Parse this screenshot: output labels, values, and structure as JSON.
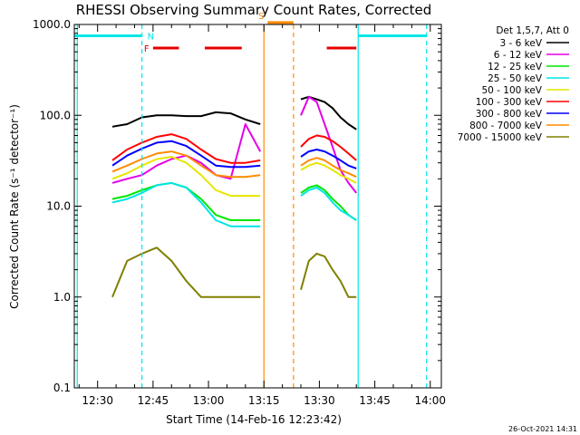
{
  "chart_data": {
    "type": "line",
    "title": "RHESSI Observing Summary Count Rates, Corrected",
    "xlabel": "Start Time (14-Feb-16 12:23:42)",
    "ylabel": "Corrected Count Rate (s⁻¹ detector⁻¹)",
    "y_scale": "log",
    "ylim": [
      0.1,
      1000
    ],
    "xlim": [
      "12:23:42",
      "14:03:00"
    ],
    "y_ticks": [
      "0.1",
      "1.0",
      "10.0",
      "100.0",
      "1000.0"
    ],
    "x_ticks": [
      "12:30",
      "12:45",
      "13:00",
      "13:15",
      "13:30",
      "13:45",
      "14:00"
    ],
    "legend_header": "Det 1,5,7, Att 0",
    "legend_position": "right",
    "timestamp": "26-Oct-2021 14:31",
    "time_blocks": [
      {
        "start": "12:34:00",
        "end": "13:14:00"
      },
      {
        "start": "13:25:00",
        "end": "13:40:00"
      }
    ],
    "series": [
      {
        "name": "3 - 6 keV",
        "color": "#000000",
        "values": [
          [
            75,
            80,
            95,
            100,
            100,
            98,
            98,
            108,
            105,
            90,
            80
          ],
          [
            150,
            160,
            150,
            140,
            120,
            95,
            80,
            70
          ]
        ]
      },
      {
        "name": "6 - 12 keV",
        "color": "#e600e6",
        "values": [
          [
            18,
            20,
            22,
            28,
            33,
            36,
            30,
            22,
            20,
            80,
            40
          ],
          [
            100,
            160,
            140,
            80,
            45,
            25,
            18,
            14
          ]
        ]
      },
      {
        "name": "12 - 25 keV",
        "color": "#00e600",
        "values": [
          [
            12,
            13,
            15,
            17,
            18,
            16,
            12,
            8,
            7,
            7,
            7
          ],
          [
            14,
            16,
            17,
            15,
            12,
            10,
            8,
            7
          ]
        ]
      },
      {
        "name": "25 - 50 keV",
        "color": "#00e6e6",
        "values": [
          [
            11,
            12,
            14,
            17,
            18,
            16,
            11,
            7,
            6,
            6,
            6
          ],
          [
            13,
            15,
            16,
            14,
            11,
            9,
            8,
            7
          ]
        ]
      },
      {
        "name": "50 - 100 keV",
        "color": "#e6e600",
        "values": [
          [
            20,
            23,
            28,
            33,
            35,
            30,
            22,
            15,
            13,
            13,
            13
          ],
          [
            25,
            28,
            30,
            28,
            25,
            22,
            20,
            18
          ]
        ]
      },
      {
        "name": "100 - 300 keV",
        "color": "#ff0000",
        "values": [
          [
            32,
            42,
            50,
            58,
            62,
            55,
            42,
            33,
            30,
            30,
            32
          ],
          [
            45,
            55,
            60,
            58,
            52,
            45,
            38,
            32
          ]
        ]
      },
      {
        "name": "300 - 800 keV",
        "color": "#0000ff",
        "values": [
          [
            28,
            36,
            43,
            50,
            52,
            46,
            36,
            28,
            27,
            27,
            28
          ],
          [
            35,
            40,
            42,
            40,
            36,
            32,
            28,
            26
          ]
        ]
      },
      {
        "name": "800 - 7000 keV",
        "color": "#ff8c00",
        "values": [
          [
            24,
            28,
            33,
            38,
            40,
            36,
            28,
            22,
            21,
            21,
            22
          ],
          [
            28,
            32,
            34,
            32,
            28,
            25,
            23,
            21
          ]
        ]
      },
      {
        "name": "7000 - 15000 keV",
        "color": "#808000",
        "values": [
          [
            1.0,
            2.5,
            3.0,
            3.5,
            2.5,
            1.5,
            1.0,
            1.0,
            1.0,
            1.0,
            1.0
          ],
          [
            1.2,
            2.5,
            3.0,
            2.8,
            2.0,
            1.5,
            1.0,
            1.0
          ]
        ]
      }
    ],
    "flags": [
      {
        "label": "F",
        "color": "#e60000",
        "value": 550,
        "segments": [
          [
            "12:45:00",
            "12:52:00"
          ],
          [
            "12:59:00",
            "13:09:00"
          ],
          [
            "13:32:00",
            "13:40:00"
          ]
        ]
      },
      {
        "label": "N",
        "color": "#00e6e6",
        "value": 750,
        "segments": [
          [
            "12:23:42",
            "12:42:00"
          ],
          [
            "13:40:30",
            "13:59:00"
          ]
        ]
      },
      {
        "label": "S",
        "color": "#ff8c00",
        "value": 1050,
        "segments": [
          [
            "13:16:00",
            "13:23:00"
          ]
        ]
      }
    ],
    "verticals": [
      {
        "time": "12:24:30",
        "color": "#00e6e6",
        "style": "solid"
      },
      {
        "time": "12:42:00",
        "color": "#00e6e6",
        "style": "dashed"
      },
      {
        "time": "13:40:30",
        "color": "#00e6e6",
        "style": "solid"
      },
      {
        "time": "13:59:00",
        "color": "#00e6e6",
        "style": "dashed"
      },
      {
        "time": "13:15:00",
        "color": "#ff8c00",
        "style": "solid"
      },
      {
        "time": "13:23:00",
        "color": "#ff8c00",
        "style": "dashed"
      }
    ]
  }
}
